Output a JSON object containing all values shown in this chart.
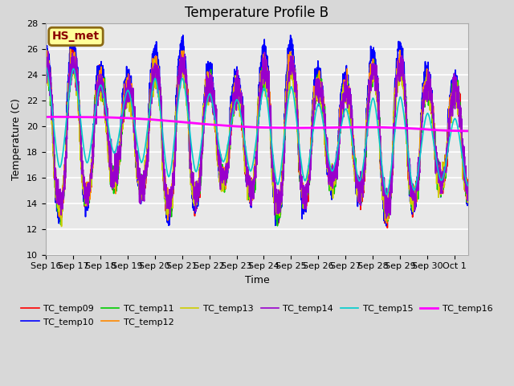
{
  "title": "Temperature Profile B",
  "xlabel": "Time",
  "ylabel": "Temperature (C)",
  "ylim": [
    10,
    28
  ],
  "xtick_labels": [
    "Sep 16",
    "Sep 17",
    "Sep 18",
    "Sep 19",
    "Sep 20",
    "Sep 21",
    "Sep 22",
    "Sep 23",
    "Sep 24",
    "Sep 25",
    "Sep 26",
    "Sep 27",
    "Sep 28",
    "Sep 29",
    "Sep 30",
    "Oct 1"
  ],
  "annotation_text": "HS_met",
  "annotation_facecolor": "#ffff99",
  "annotation_edgecolor": "#8B6914",
  "annotation_textcolor": "#8B0000",
  "fig_facecolor": "#d8d8d8",
  "plot_facecolor": "#e8e8e8",
  "series_colors": {
    "TC_temp09": "#ff0000",
    "TC_temp10": "#0000ff",
    "TC_temp11": "#00cc00",
    "TC_temp12": "#ff8800",
    "TC_temp13": "#cccc00",
    "TC_temp14": "#9900cc",
    "TC_temp15": "#00cccc",
    "TC_temp16": "#ff00ff"
  },
  "title_fontsize": 12,
  "tick_fontsize": 8,
  "axis_label_fontsize": 9,
  "legend_fontsize": 8
}
